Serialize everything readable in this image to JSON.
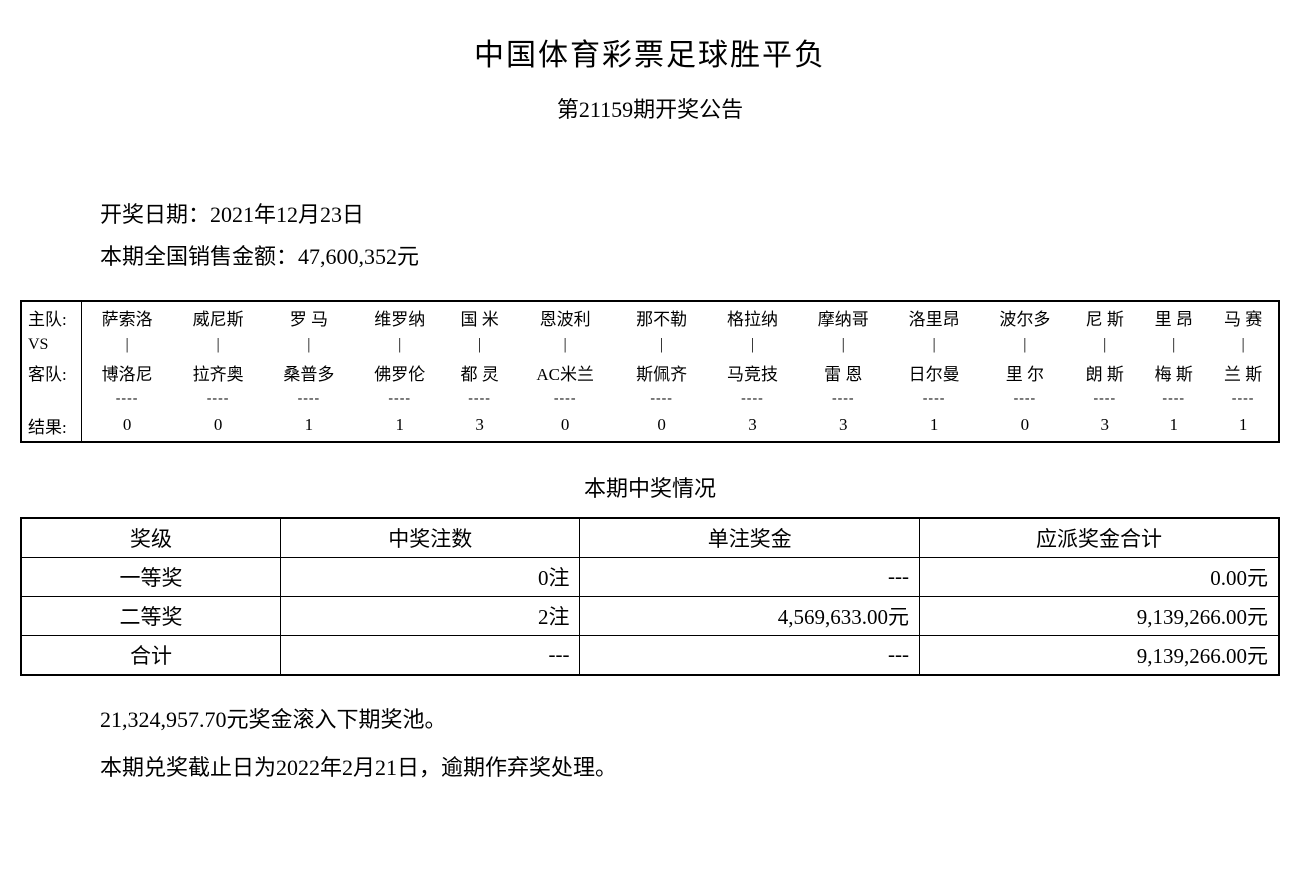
{
  "title": "中国体育彩票足球胜平负",
  "subtitle": "第21159期开奖公告",
  "info": {
    "date_label": "开奖日期：",
    "date_value": "2021年12月23日",
    "sales_label": "本期全国销售金额：",
    "sales_value": "47,600,352元"
  },
  "match": {
    "row_labels": {
      "home": "主队:",
      "vs": "VS",
      "away": "客队:",
      "result": "结果:"
    },
    "home": [
      "萨索洛",
      "威尼斯",
      "罗 马",
      "维罗纳",
      "国 米",
      "恩波利",
      "那不勒",
      "格拉纳",
      "摩纳哥",
      "洛里昂",
      "波尔多",
      "尼 斯",
      "里 昂",
      "马 赛"
    ],
    "away": [
      "博洛尼",
      "拉齐奥",
      "桑普多",
      "佛罗伦",
      "都 灵",
      "AC米兰",
      "斯佩齐",
      "马竞技",
      "雷 恩",
      "日尔曼",
      "里 尔",
      "朗 斯",
      "梅 斯",
      "兰 斯"
    ],
    "result": [
      "0",
      "0",
      "1",
      "1",
      "3",
      "0",
      "0",
      "3",
      "3",
      "1",
      "0",
      "3",
      "1",
      "1"
    ],
    "vs_mark": "|",
    "dash_mark": "----"
  },
  "prize_section_title": "本期中奖情况",
  "prize_table": {
    "columns": [
      "奖级",
      "中奖注数",
      "单注奖金",
      "应派奖金合计"
    ],
    "rows": [
      {
        "level": "一等奖",
        "count": "0注",
        "unit": "---",
        "total": "0.00元"
      },
      {
        "level": "二等奖",
        "count": "2注",
        "unit": "4,569,633.00元",
        "total": "9,139,266.00元"
      },
      {
        "level": "合计",
        "count": "---",
        "unit": "---",
        "total": "9,139,266.00元"
      }
    ]
  },
  "footer": {
    "rollover": "21,324,957.70元奖金滚入下期奖池。",
    "deadline": "本期兑奖截止日为2022年2月21日，逾期作弃奖处理。"
  },
  "style": {
    "text_color": "#000000",
    "background_color": "#ffffff",
    "border_color": "#000000",
    "title_fontsize": 30,
    "body_fontsize": 22,
    "match_fontsize": 17,
    "prize_fontsize": 21,
    "font_family": "SimSun"
  }
}
